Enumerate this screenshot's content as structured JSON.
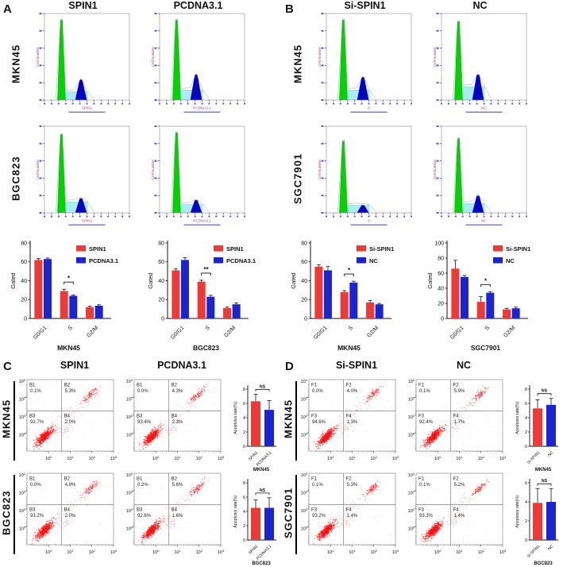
{
  "panels": {
    "A": {
      "label": "A",
      "col_titles": [
        "SPIN1",
        "PCDNA3.1"
      ],
      "row_titles": [
        "MKN45",
        "BGC823"
      ]
    },
    "B": {
      "label": "B",
      "col_titles": [
        "Si-SPIN1",
        "NC"
      ],
      "row_titles": [
        "MKN45",
        "SGC7901"
      ]
    },
    "C": {
      "label": "C",
      "col_titles": [
        "SPIN1",
        "PCDNA3.1"
      ],
      "row_titles": [
        "MKN45",
        "BGC823"
      ]
    },
    "D": {
      "label": "D",
      "col_titles": [
        "Si-SPIN1",
        "NC"
      ],
      "row_titles": [
        "MKN45",
        "SGC7901"
      ]
    }
  },
  "colors": {
    "red": "#ee3a36",
    "blue": "#1c24cf",
    "green": "#00d300",
    "cyan": "#a9edf0",
    "navy": "#0000c4",
    "dot_red": "#ff1111",
    "hist_label": "#b3437f",
    "axis_blue": "#3a3ac8"
  },
  "chart_data": [
    {
      "id": "cc-A-MKN45",
      "kind": "grouped_bar",
      "type": "bar",
      "panel": "A",
      "xlabel": "MKN45",
      "ylabel": "Gated",
      "ylim": [
        0,
        80
      ],
      "yticks": [
        0,
        20,
        40,
        60,
        80
      ],
      "categories": [
        "G0/G1",
        "S",
        "G2/M"
      ],
      "legend_position": "top-right",
      "series": [
        {
          "name": "SPIN1",
          "color": "red",
          "values": [
            62,
            29,
            12
          ],
          "errors": [
            1.5,
            2,
            1
          ]
        },
        {
          "name": "PCDNA3.1",
          "color": "blue",
          "values": [
            63,
            24,
            13.5
          ],
          "errors": [
            1,
            1,
            1
          ]
        }
      ],
      "significance": {
        "category": "S",
        "label": "*"
      }
    },
    {
      "id": "cc-A-BGC823",
      "kind": "grouped_bar",
      "type": "bar",
      "panel": "A",
      "xlabel": "BGC823",
      "ylabel": "Gated",
      "ylim": [
        0,
        80
      ],
      "yticks": [
        0,
        20,
        40,
        60,
        80
      ],
      "categories": [
        "G0/G1",
        "S",
        "G2/M"
      ],
      "legend_position": "top-right",
      "series": [
        {
          "name": "SPIN1",
          "color": "red",
          "values": [
            51,
            39,
            11
          ],
          "errors": [
            1.5,
            1.5,
            1
          ]
        },
        {
          "name": "PCDNA3.1",
          "color": "blue",
          "values": [
            62,
            23,
            15
          ],
          "errors": [
            2.5,
            1.5,
            1.5
          ]
        }
      ],
      "significance": {
        "category": "S",
        "label": "**"
      }
    },
    {
      "id": "cc-B-MKN45",
      "kind": "grouped_bar",
      "type": "bar",
      "panel": "B",
      "xlabel": "MKN45",
      "ylabel": "Gated",
      "ylim": [
        0,
        80
      ],
      "yticks": [
        0,
        20,
        40,
        60,
        80
      ],
      "categories": [
        "G0/G1",
        "S",
        "G2/M"
      ],
      "legend_position": "top-right",
      "series": [
        {
          "name": "Si-SPIN1",
          "color": "red",
          "values": [
            55,
            28,
            17
          ],
          "errors": [
            2,
            1.5,
            2
          ]
        },
        {
          "name": "NC",
          "color": "blue",
          "values": [
            51,
            38,
            15
          ],
          "errors": [
            4,
            1.5,
            1
          ]
        }
      ],
      "significance": {
        "category": "S",
        "label": "*"
      }
    },
    {
      "id": "cc-B-SGC7901",
      "kind": "grouped_bar",
      "type": "bar",
      "panel": "B",
      "xlabel": "SGC7901",
      "ylabel": "Gated",
      "ylim": [
        0,
        100
      ],
      "yticks": [
        0,
        20,
        40,
        60,
        80,
        100
      ],
      "categories": [
        "G0/G1",
        "S",
        "G2/M"
      ],
      "legend_position": "top-right",
      "series": [
        {
          "name": "Si-SPIN1",
          "color": "red",
          "values": [
            66,
            22,
            12
          ],
          "errors": [
            11,
            7,
            1.5
          ]
        },
        {
          "name": "NC",
          "color": "blue",
          "values": [
            55,
            34,
            13.5
          ],
          "errors": [
            2,
            1.5,
            1.5
          ]
        }
      ],
      "significance": {
        "category": "S",
        "label": "*"
      }
    },
    {
      "id": "apo-C-MKN45",
      "kind": "pair_bar",
      "type": "bar",
      "panel": "C",
      "xlabel": "MKN45",
      "ylabel": "Apoptosis rate(%)",
      "ylim": [
        0,
        8
      ],
      "yticks": [
        0,
        2,
        4,
        6,
        8
      ],
      "categories": [
        "SPIN1",
        "PCDNA3.1"
      ],
      "values": [
        6.3,
        5.1
      ],
      "errors": [
        1.0,
        1.3
      ],
      "bar_colors": [
        "red",
        "blue"
      ],
      "significance": "NS"
    },
    {
      "id": "apo-C-BGC823",
      "kind": "pair_bar",
      "type": "bar",
      "panel": "C",
      "xlabel": "BGC823",
      "ylabel": "Apoptosis rate(%)",
      "ylim": [
        0,
        8
      ],
      "yticks": [
        0,
        2,
        4,
        6,
        8
      ],
      "categories": [
        "SPIN1",
        "PCDNA3.1"
      ],
      "values": [
        4.5,
        4.5
      ],
      "errors": [
        1.1,
        1.4
      ],
      "bar_colors": [
        "red",
        "blue"
      ],
      "significance": "NS"
    },
    {
      "id": "apo-D-MKN45",
      "kind": "pair_bar",
      "type": "bar",
      "panel": "D",
      "xlabel": "MKN45",
      "ylabel": "Apoptosis rate(%)",
      "ylim": [
        0,
        8
      ],
      "yticks": [
        0,
        2,
        4,
        6,
        8
      ],
      "categories": [
        "Si-SPIN1",
        "NC"
      ],
      "values": [
        5.3,
        5.8
      ],
      "errors": [
        1.2,
        0.9
      ],
      "bar_colors": [
        "red",
        "blue"
      ],
      "significance": "NS"
    },
    {
      "id": "apo-D-SGC7901",
      "kind": "pair_bar",
      "type": "bar",
      "panel": "D",
      "xlabel": "BGC823",
      "ylabel": "Apoptosis rate(%)",
      "ylim": [
        0,
        6
      ],
      "yticks": [
        0,
        2,
        4,
        6
      ],
      "categories": [
        "Si-SPIN1",
        "NC"
      ],
      "values": [
        3.9,
        4.0
      ],
      "errors": [
        1.5,
        1.4
      ],
      "bar_colors": [
        "red",
        "blue"
      ],
      "significance": "NS"
    },
    {
      "id": "flow-C-MKN45-SPIN1",
      "kind": "flow_scatter",
      "type": "scatter",
      "panel": "C",
      "row": "MKN45",
      "col": "SPIN1",
      "axis_ticks": [
        "10^0",
        "10^1",
        "10^2",
        "10^3"
      ],
      "quadrants": [
        {
          "name": "B1",
          "value": "0.1%"
        },
        {
          "name": "B2",
          "value": "5.3%"
        },
        {
          "name": "B3",
          "value": "92.7%"
        },
        {
          "name": "B4",
          "value": "2.0%"
        }
      ]
    },
    {
      "id": "flow-C-MKN45-PCDNA3.1",
      "kind": "flow_scatter",
      "type": "scatter",
      "panel": "C",
      "row": "MKN45",
      "col": "PCDNA3.1",
      "axis_ticks": [
        "10^0",
        "10^1",
        "10^2",
        "10^3"
      ],
      "quadrants": [
        {
          "name": "B1",
          "value": "0.0%"
        },
        {
          "name": "B2",
          "value": "4.3%"
        },
        {
          "name": "B3",
          "value": "93.4%"
        },
        {
          "name": "B4",
          "value": "2.3%"
        }
      ]
    },
    {
      "id": "flow-C-BGC823-SPIN1",
      "kind": "flow_scatter",
      "type": "scatter",
      "panel": "C",
      "row": "BGC823",
      "col": "SPIN1",
      "axis_ticks": [
        "10^0",
        "10^1",
        "10^2",
        "10^3"
      ],
      "quadrants": [
        {
          "name": "B1",
          "value": "0.0%"
        },
        {
          "name": "B2",
          "value": "4.8%"
        },
        {
          "name": "B3",
          "value": "93.2%"
        },
        {
          "name": "B4",
          "value": "2.0%"
        }
      ]
    },
    {
      "id": "flow-C-BGC823-PCDNA3.1",
      "kind": "flow_scatter",
      "type": "scatter",
      "panel": "C",
      "row": "BGC823",
      "col": "PCDNA3.1",
      "axis_ticks": [
        "10^0",
        "10^1",
        "10^2",
        "10^3"
      ],
      "quadrants": [
        {
          "name": "B1",
          "value": "0.2%"
        },
        {
          "name": "B2",
          "value": "5.6%"
        },
        {
          "name": "B3",
          "value": "92.6%"
        },
        {
          "name": "B4",
          "value": "1.6%"
        }
      ]
    },
    {
      "id": "flow-D-MKN45-Si-SPIN1",
      "kind": "flow_scatter",
      "type": "scatter",
      "panel": "D",
      "row": "MKN45",
      "col": "Si-SPIN1",
      "axis_ticks": [
        "10^0",
        "10^1",
        "10^2",
        "10^3"
      ],
      "quadrants": [
        {
          "name": "F1",
          "value": "0.0%"
        },
        {
          "name": "F2",
          "value": "4.0%"
        },
        {
          "name": "F3",
          "value": "94.6%"
        },
        {
          "name": "F4",
          "value": "1.3%"
        }
      ]
    },
    {
      "id": "flow-D-MKN45-NC",
      "kind": "flow_scatter",
      "type": "scatter",
      "panel": "D",
      "row": "MKN45",
      "col": "NC",
      "axis_ticks": [
        "10^0",
        "10^1",
        "10^2",
        "10^3"
      ],
      "quadrants": [
        {
          "name": "F1",
          "value": "0.1%"
        },
        {
          "name": "F2",
          "value": "5.9%"
        },
        {
          "name": "F3",
          "value": "92.4%"
        },
        {
          "name": "F4",
          "value": "1.7%"
        }
      ]
    },
    {
      "id": "flow-D-SGC7901-Si-SPIN1",
      "kind": "flow_scatter",
      "type": "scatter",
      "panel": "D",
      "row": "SGC7901",
      "col": "Si-SPIN1",
      "axis_ticks": [
        "10^0",
        "10^1",
        "10^2",
        "10^3"
      ],
      "quadrants": [
        {
          "name": "F1",
          "value": "0.1%"
        },
        {
          "name": "F2",
          "value": "5.3%"
        },
        {
          "name": "F3",
          "value": "93.2%"
        },
        {
          "name": "F4",
          "value": "1.4%"
        }
      ]
    },
    {
      "id": "flow-D-SGC7901-NC",
      "kind": "flow_scatter",
      "type": "scatter",
      "panel": "D",
      "row": "SGC7901",
      "col": "NC",
      "axis_ticks": [
        "10^0",
        "10^1",
        "10^2",
        "10^3"
      ],
      "quadrants": [
        {
          "name": "F1",
          "value": "0.1%"
        },
        {
          "name": "F2",
          "value": "5.2%"
        },
        {
          "name": "F3",
          "value": "93.3%"
        },
        {
          "name": "F4",
          "value": "1.4%"
        }
      ]
    },
    {
      "id": "hist-A-MKN45-SPIN1",
      "kind": "cycle_histogram",
      "type": "histogram",
      "panel": "A",
      "row": "MKN45",
      "col": "SPIN1",
      "xlabel": "SPIN1",
      "ylabel": "Cell Number",
      "phases": [
        "G0/G1 (green)",
        "S (cyan)",
        "G2/M (blue)"
      ],
      "shape": {
        "g1": 0.95,
        "s": 0.1,
        "g2": 0.24
      }
    },
    {
      "id": "hist-A-MKN45-PCDNA3.1",
      "kind": "cycle_histogram",
      "type": "histogram",
      "panel": "A",
      "row": "MKN45",
      "col": "PCDNA3.1",
      "xlabel": "PCDNA3.1",
      "ylabel": "Cell Number",
      "phases": [
        "G0/G1 (green)",
        "S (cyan)",
        "G2/M (blue)"
      ],
      "shape": {
        "g1": 0.95,
        "s": 0.12,
        "g2": 0.3
      }
    },
    {
      "id": "hist-A-BGC823-SPIN1",
      "kind": "cycle_histogram",
      "type": "histogram",
      "panel": "A",
      "row": "BGC823",
      "col": "SPIN1",
      "xlabel": "SPIN1",
      "ylabel": "Cell Number",
      "phases": [
        "G0/G1 (green)",
        "S (cyan)",
        "G2/M (blue)"
      ],
      "shape": {
        "g1": 0.93,
        "s": 0.13,
        "g2": 0.17
      }
    },
    {
      "id": "hist-A-BGC823-PCDNA3.1",
      "kind": "cycle_histogram",
      "type": "histogram",
      "panel": "A",
      "row": "BGC823",
      "col": "PCDNA3.1",
      "xlabel": "PCDNA3.1",
      "ylabel": "Cell Number",
      "phases": [
        "G0/G1 (green)",
        "S (cyan)",
        "G2/M (blue)"
      ],
      "shape": {
        "g1": 0.95,
        "s": 0.1,
        "g2": 0.15
      }
    },
    {
      "id": "hist-B-MKN45-Si-SPIN1",
      "kind": "cycle_histogram",
      "type": "histogram",
      "panel": "B",
      "row": "MKN45",
      "col": "Si-SPIN1",
      "xlabel": "S",
      "ylabel": "Cell Number",
      "phases": [
        "G0/G1 (green)",
        "S (cyan)",
        "G2/M (blue)"
      ],
      "shape": {
        "g1": 0.95,
        "s": 0.12,
        "g2": 0.27
      }
    },
    {
      "id": "hist-B-MKN45-NC",
      "kind": "cycle_histogram",
      "type": "histogram",
      "panel": "B",
      "row": "MKN45",
      "col": "NC",
      "xlabel": "NC",
      "ylabel": "Cell Number",
      "phases": [
        "G0/G1 (green)",
        "S (cyan)",
        "G2/M (blue)"
      ],
      "shape": {
        "g1": 0.93,
        "s": 0.16,
        "g2": 0.3
      }
    },
    {
      "id": "hist-B-SGC7901-Si-SPIN1",
      "kind": "cycle_histogram",
      "type": "histogram",
      "panel": "B",
      "row": "SGC7901",
      "col": "Si-SPIN1",
      "xlabel": "S",
      "ylabel": "Cell Number",
      "phases": [
        "G0/G1 (green)",
        "S (cyan)",
        "G2/M (blue)"
      ],
      "shape": {
        "g1": 0.85,
        "s": 0.09,
        "g2": 0.09
      }
    },
    {
      "id": "hist-B-SGC7901-NC",
      "kind": "cycle_histogram",
      "type": "histogram",
      "panel": "B",
      "row": "SGC7901",
      "col": "NC",
      "xlabel": "NC",
      "ylabel": "Cell Number",
      "phases": [
        "G0/G1 (green)",
        "S (cyan)",
        "G2/M (blue)"
      ],
      "shape": {
        "g1": 0.88,
        "s": 0.11,
        "g2": 0.2
      }
    }
  ]
}
